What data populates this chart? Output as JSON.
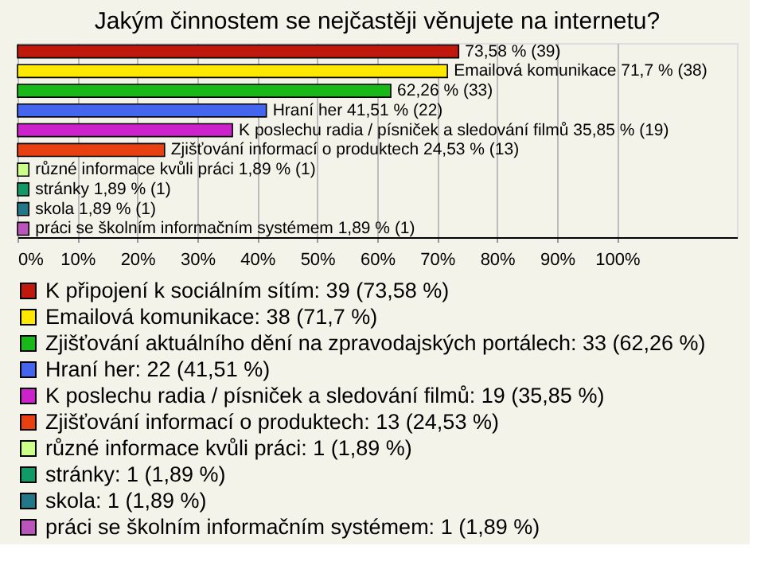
{
  "chart_data": {
    "type": "bar",
    "orientation": "horizontal",
    "title": "Jakým činnostem se nejčastěji věnujete na internetu?",
    "categories": [
      null,
      null,
      null,
      null,
      null,
      null,
      null,
      null,
      null,
      null
    ],
    "series": [
      {
        "name": "K připojení k sociálním sítím: 39 (73,58 %)",
        "color": "#c0180c",
        "values": [
          73.58,
          null,
          null,
          null,
          null,
          null,
          null,
          null,
          null,
          null
        ],
        "value_labels": [
          "73,58 % (39)",
          null,
          null,
          null,
          null,
          null,
          null,
          null,
          null,
          null
        ]
      },
      {
        "name": "Emailová komunikace: 38 (71,7 %)",
        "color": "#ffe800",
        "values": [
          null,
          71.7,
          null,
          null,
          null,
          null,
          null,
          null,
          null,
          null
        ],
        "value_labels": [
          null,
          "Emailová komunikace 71,7 % (38)",
          null,
          null,
          null,
          null,
          null,
          null,
          null,
          null
        ]
      },
      {
        "name": "Zjišťování aktuálního dění na zpravodajských portálech: 33 (62,26 %)",
        "color": "#18b818",
        "values": [
          null,
          null,
          62.26,
          null,
          null,
          null,
          null,
          null,
          null,
          null
        ],
        "value_labels": [
          null,
          null,
          "62,26 % (33)",
          null,
          null,
          null,
          null,
          null,
          null,
          null
        ]
      },
      {
        "name": "Hraní her: 22 (41,51 %)",
        "color": "#4466ee",
        "values": [
          null,
          null,
          null,
          41.51,
          null,
          null,
          null,
          null,
          null,
          null
        ],
        "value_labels": [
          null,
          null,
          null,
          "Hraní her 41,51 % (22)",
          null,
          null,
          null,
          null,
          null,
          null
        ]
      },
      {
        "name": "K poslechu radia / písniček a sledování filmů: 19 (35,85 %)",
        "color": "#cc22cc",
        "values": [
          null,
          null,
          null,
          null,
          35.85,
          null,
          null,
          null,
          null,
          null
        ],
        "value_labels": [
          null,
          null,
          null,
          null,
          "K poslechu radia / písniček a sledování filmů 35,85 % (19)",
          null,
          null,
          null,
          null,
          null
        ]
      },
      {
        "name": "Zjišťování informací o produktech: 13 (24,53 %)",
        "color": "#e84010",
        "values": [
          null,
          null,
          null,
          null,
          null,
          24.53,
          null,
          null,
          null,
          null
        ],
        "value_labels": [
          null,
          null,
          null,
          null,
          null,
          "Zjišťování informací o produktech 24,53 % (13)",
          null,
          null,
          null,
          null
        ]
      },
      {
        "name": "různé informace kvůli práci: 1 (1,89 %)",
        "color": "#ccff88",
        "values": [
          null,
          null,
          null,
          null,
          null,
          null,
          1.89,
          null,
          null,
          null
        ],
        "value_labels": [
          null,
          null,
          null,
          null,
          null,
          null,
          "různé informace kvůli práci 1,89 % (1)",
          null,
          null,
          null
        ]
      },
      {
        "name": "stránky: 1 (1,89 %)",
        "color": "#119966",
        "values": [
          null,
          null,
          null,
          null,
          null,
          null,
          null,
          1.89,
          null,
          null
        ],
        "value_labels": [
          null,
          null,
          null,
          null,
          null,
          null,
          null,
          "stránky 1,89 % (1)",
          null,
          null
        ]
      },
      {
        "name": "skola: 1 (1,89 %)",
        "color": "#227788",
        "values": [
          null,
          null,
          null,
          null,
          null,
          null,
          null,
          null,
          1.89,
          null
        ],
        "value_labels": [
          null,
          null,
          null,
          null,
          null,
          null,
          null,
          null,
          "skola 1,89 % (1)",
          null
        ]
      },
      {
        "name": "práci se školním informačním systémem: 1 (1,89 %)",
        "color": "#bb55bb",
        "values": [
          null,
          null,
          null,
          null,
          null,
          null,
          null,
          null,
          null,
          1.89
        ],
        "value_labels": [
          null,
          null,
          null,
          null,
          null,
          null,
          null,
          null,
          null,
          "práci se školním informačním systémem 1,89 % (1)"
        ]
      }
    ],
    "xlim": [
      0,
      120
    ],
    "xticks": [
      {
        "value": 0,
        "label": "0%"
      },
      {
        "value": 10,
        "label": "10%"
      },
      {
        "value": 20,
        "label": "20%"
      },
      {
        "value": 30,
        "label": "30%"
      },
      {
        "value": 40,
        "label": "40%"
      },
      {
        "value": 50,
        "label": "50%"
      },
      {
        "value": 60,
        "label": "60%"
      },
      {
        "value": 70,
        "label": "70%"
      },
      {
        "value": 80,
        "label": "80%"
      },
      {
        "value": 90,
        "label": "90%"
      },
      {
        "value": 100,
        "label": "100%"
      }
    ],
    "grid": "x",
    "legend": "bottom",
    "tick_labels": "x"
  }
}
